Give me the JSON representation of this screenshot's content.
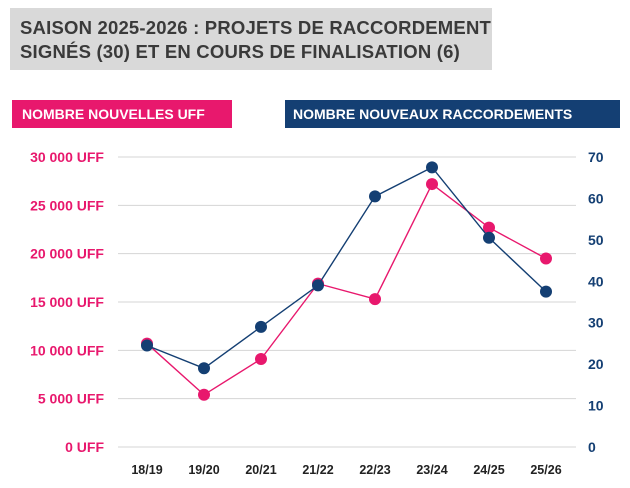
{
  "title": {
    "line1": "SAISON 2025-2026 : PROJETS DE RACCORDEMENT",
    "line2": "SIGNÉS (30) ET EN COURS DE FINALISATION (6)"
  },
  "legend": {
    "left_label": "NOMBRE NOUVELLES UFF",
    "right_label": "NOMBRE NOUVEAUX RACCORDEMENTS"
  },
  "colors": {
    "uff": "#e8186d",
    "raccordements": "#143f73",
    "grid": "#d4d4d4"
  },
  "chart_data": {
    "type": "line",
    "categories": [
      "18/19",
      "19/20",
      "20/21",
      "21/22",
      "22/23",
      "23/24",
      "24/25",
      "25/26"
    ],
    "series": [
      {
        "name": "NOMBRE NOUVELLES UFF",
        "axis": "left",
        "values": [
          10700,
          5400,
          9100,
          16900,
          15300,
          27200,
          22700,
          19500
        ]
      },
      {
        "name": "NOMBRE NOUVEAUX RACCORDEMENTS",
        "axis": "right",
        "values": [
          24.5,
          19,
          29,
          39,
          60.5,
          67.5,
          50.5,
          37.5
        ]
      }
    ],
    "y_left": {
      "range": [
        0,
        30000
      ],
      "ticks": [
        0,
        5000,
        10000,
        15000,
        20000,
        25000,
        30000
      ],
      "tick_labels": [
        "0 UFF",
        "5 000 UFF",
        "10 000 UFF",
        "15 000 UFF",
        "20 000 UFF",
        "25 000 UFF",
        "30 000 UFF"
      ]
    },
    "y_right": {
      "range": [
        0,
        70
      ],
      "ticks": [
        0,
        10,
        20,
        30,
        40,
        50,
        60,
        70
      ],
      "tick_labels": [
        "0",
        "10",
        "20",
        "30",
        "40",
        "50",
        "60",
        "70"
      ]
    },
    "grid": true
  }
}
